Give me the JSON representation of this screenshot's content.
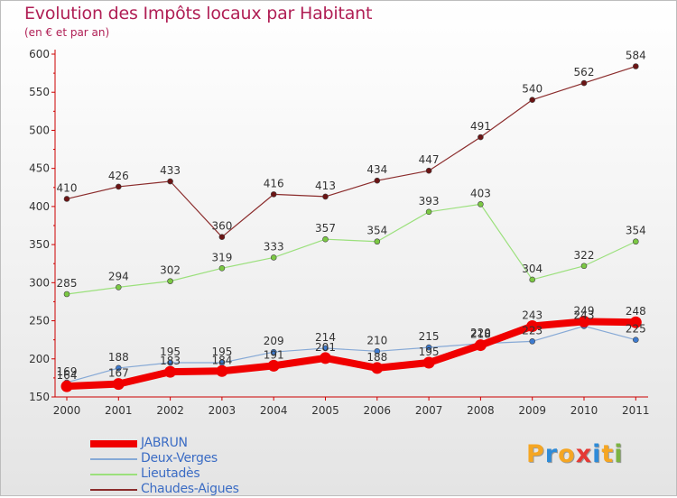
{
  "title": "Evolution des Impôts locaux par Habitant",
  "subtitle": "(en € et par an)",
  "brand": {
    "text": "Proxiti",
    "colors": [
      "#f5a623",
      "#2e8bd8",
      "#f5a623",
      "#e53935",
      "#2e8bd8",
      "#f5a623",
      "#7cb342"
    ]
  },
  "chart_data": {
    "type": "line",
    "title": "Evolution des Impôts locaux par Habitant",
    "subtitle": "(en € et par an)",
    "xlabel": "",
    "ylabel": "",
    "categories": [
      "2000",
      "2001",
      "2002",
      "2003",
      "2004",
      "2005",
      "2006",
      "2007",
      "2008",
      "2009",
      "2010",
      "2011"
    ],
    "ylim": [
      150,
      600
    ],
    "yticks": [
      150,
      200,
      250,
      300,
      350,
      400,
      450,
      500,
      550,
      600
    ],
    "grid": false,
    "legend_position": "bottom-left",
    "series": [
      {
        "name": "Chaudes-Aigues",
        "color": "#8b2c2c",
        "marker": "#6b1414",
        "width": 1.2,
        "values": [
          410,
          426,
          433,
          360,
          416,
          413,
          434,
          447,
          491,
          540,
          562,
          584
        ]
      },
      {
        "name": "Lieutadès",
        "color": "#9be07c",
        "marker": "#7bc843",
        "width": 1.2,
        "values": [
          285,
          294,
          302,
          319,
          333,
          357,
          354,
          393,
          403,
          304,
          322,
          354
        ]
      },
      {
        "name": "Deux-Verges",
        "color": "#86a9d6",
        "marker": "#3d7bd0",
        "width": 1.2,
        "values": [
          169,
          188,
          195,
          195,
          209,
          214,
          210,
          215,
          220,
          223,
          243,
          225
        ]
      },
      {
        "name": "JABRUN",
        "color": "#f00000",
        "marker": "#f00000",
        "width": 8,
        "values": [
          164,
          167,
          183,
          184,
          191,
          201,
          188,
          195,
          218,
          243,
          249,
          248
        ]
      }
    ],
    "data_labels": [
      [
        "410",
        "426",
        "433",
        "360",
        "416",
        "413",
        "434",
        "447",
        "491",
        "540",
        "562",
        "584"
      ],
      [
        "285",
        "294",
        "302",
        "319",
        "333",
        "357",
        "354",
        "393",
        "403",
        "304",
        "322",
        "354"
      ],
      [
        "169",
        "188",
        "195",
        "195",
        "209",
        "214",
        "210",
        "215",
        "220",
        "223",
        "243",
        "225"
      ],
      [
        "164",
        "167",
        "183",
        "184",
        "191",
        "201",
        "188",
        "195",
        "218",
        "243",
        "249",
        "248"
      ]
    ]
  },
  "legend": [
    {
      "name": "JABRUN",
      "color": "#f00000",
      "thick": true
    },
    {
      "name": "Deux-Verges",
      "color": "#86a9d6",
      "thick": false
    },
    {
      "name": "Lieutadès",
      "color": "#9be07c",
      "thick": false
    },
    {
      "name": "Chaudes-Aigues",
      "color": "#8b2c2c",
      "thick": false
    }
  ]
}
